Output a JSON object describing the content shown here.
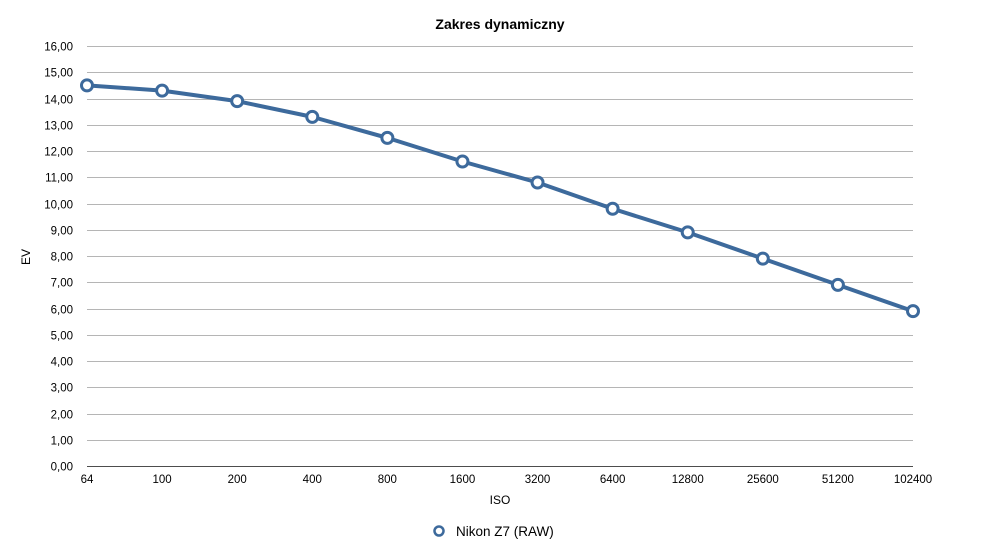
{
  "chart_data": {
    "type": "line",
    "title": "Zakres dynamiczny",
    "xlabel": "ISO",
    "ylabel": "EV",
    "categories": [
      "64",
      "100",
      "200",
      "400",
      "800",
      "1600",
      "3200",
      "6400",
      "12800",
      "25600",
      "51200",
      "102400"
    ],
    "ylim": [
      0,
      16
    ],
    "yticks": [
      "0,00",
      "1,00",
      "2,00",
      "3,00",
      "4,00",
      "5,00",
      "6,00",
      "7,00",
      "8,00",
      "9,00",
      "10,00",
      "11,00",
      "12,00",
      "13,00",
      "14,00",
      "15,00",
      "16,00"
    ],
    "grid": true,
    "legend_position": "bottom",
    "series": [
      {
        "name": "Nikon Z7 (RAW)",
        "color": "#3d6a9c",
        "marker": "hollow-circle",
        "values": [
          14.5,
          14.3,
          13.9,
          13.3,
          12.5,
          11.6,
          10.8,
          9.8,
          8.9,
          7.9,
          6.9,
          5.9
        ]
      }
    ]
  }
}
